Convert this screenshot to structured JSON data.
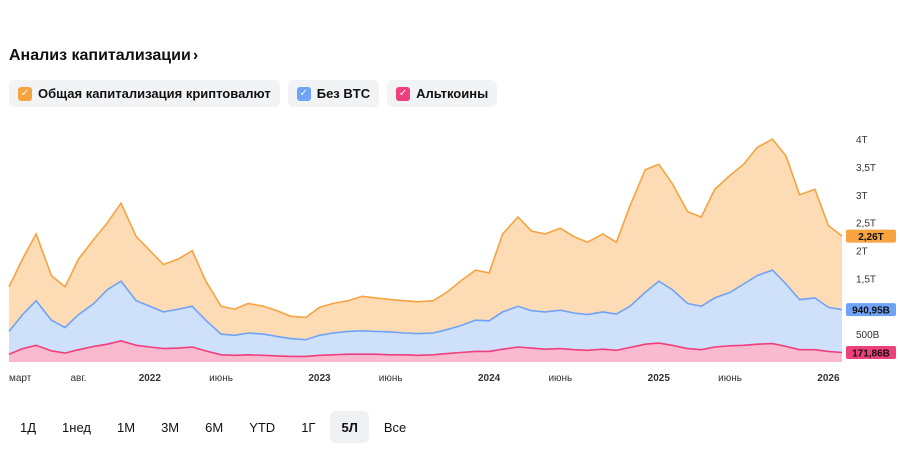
{
  "header": {
    "title": "Анализ капитализации",
    "chevron": "›"
  },
  "legend": [
    {
      "label": "Общая капитализация криптовалют",
      "color": "#f6a340",
      "icon": "check-icon"
    },
    {
      "label": "Без BTC",
      "color": "#6fa3f7",
      "icon": "check-icon"
    },
    {
      "label": "Альткоины",
      "color": "#ef3f7c",
      "icon": "check-icon"
    }
  ],
  "periods": [
    "1Д",
    "1нед",
    "1М",
    "3М",
    "6М",
    "YTD",
    "1Г",
    "5Л",
    "Все"
  ],
  "active_period": "5Л",
  "chart_data": {
    "type": "area",
    "title": "Анализ капитализации",
    "xlabel": "",
    "ylabel": "",
    "ylim": [
      0,
      4.2
    ],
    "yticks": [
      {
        "label": "500B",
        "value": 0.5
      },
      {
        "label": "1,5T",
        "value": 1.5
      },
      {
        "label": "2T",
        "value": 2.0
      },
      {
        "label": "2,5T",
        "value": 2.5
      },
      {
        "label": "3T",
        "value": 3.0
      },
      {
        "label": "3,5T",
        "value": 3.5
      },
      {
        "label": "4T",
        "value": 4.0
      }
    ],
    "xticks": [
      {
        "label": "март",
        "x": 2021.17
      },
      {
        "label": "авг.",
        "x": 2021.58
      },
      {
        "label": "2022",
        "x": 2022.0
      },
      {
        "label": "июнь",
        "x": 2022.42
      },
      {
        "label": "2023",
        "x": 2023.0
      },
      {
        "label": "июнь",
        "x": 2023.42
      },
      {
        "label": "2024",
        "x": 2024.0
      },
      {
        "label": "июнь",
        "x": 2024.42
      },
      {
        "label": "2025",
        "x": 2025.0
      },
      {
        "label": "июнь",
        "x": 2025.42
      },
      {
        "label": "2026",
        "x": 2026.0
      }
    ],
    "xlim": [
      2021.17,
      2026.08
    ],
    "x": [
      2021.17,
      2021.25,
      2021.33,
      2021.42,
      2021.5,
      2021.58,
      2021.67,
      2021.75,
      2021.83,
      2021.92,
      2022.0,
      2022.08,
      2022.17,
      2022.25,
      2022.33,
      2022.42,
      2022.5,
      2022.58,
      2022.67,
      2022.75,
      2022.83,
      2022.92,
      2023.0,
      2023.08,
      2023.17,
      2023.25,
      2023.33,
      2023.42,
      2023.5,
      2023.58,
      2023.67,
      2023.75,
      2023.83,
      2023.92,
      2024.0,
      2024.08,
      2024.17,
      2024.25,
      2024.33,
      2024.42,
      2024.5,
      2024.58,
      2024.67,
      2024.75,
      2024.83,
      2024.92,
      2025.0,
      2025.08,
      2025.17,
      2025.25,
      2025.33,
      2025.42,
      2025.5,
      2025.58,
      2025.67,
      2025.75,
      2025.83,
      2025.92,
      2026.0,
      2026.08
    ],
    "series": [
      {
        "name": "Общая капитализация криптовалют",
        "color": "#f6a340",
        "last_label": "2,26T",
        "values": [
          1.35,
          1.85,
          2.3,
          1.55,
          1.35,
          1.85,
          2.2,
          2.5,
          2.85,
          2.25,
          2.0,
          1.75,
          1.85,
          2.0,
          1.45,
          1.0,
          0.95,
          1.05,
          1.0,
          0.92,
          0.82,
          0.8,
          0.98,
          1.05,
          1.1,
          1.18,
          1.15,
          1.12,
          1.1,
          1.08,
          1.1,
          1.25,
          1.45,
          1.65,
          1.6,
          2.3,
          2.6,
          2.35,
          2.3,
          2.4,
          2.25,
          2.15,
          2.3,
          2.15,
          2.8,
          3.45,
          3.55,
          3.2,
          2.7,
          2.6,
          3.1,
          3.35,
          3.55,
          3.85,
          4.0,
          3.7,
          3.0,
          3.1,
          2.45,
          2.26
        ]
      },
      {
        "name": "Без BTC",
        "color": "#6fa3f7",
        "last_label": "940,95B",
        "values": [
          0.55,
          0.85,
          1.1,
          0.75,
          0.62,
          0.85,
          1.05,
          1.3,
          1.45,
          1.1,
          1.0,
          0.9,
          0.95,
          1.0,
          0.75,
          0.5,
          0.48,
          0.52,
          0.5,
          0.46,
          0.42,
          0.4,
          0.48,
          0.52,
          0.55,
          0.56,
          0.55,
          0.54,
          0.52,
          0.51,
          0.52,
          0.58,
          0.65,
          0.75,
          0.74,
          0.9,
          1.0,
          0.92,
          0.9,
          0.93,
          0.88,
          0.85,
          0.9,
          0.86,
          1.0,
          1.25,
          1.45,
          1.3,
          1.05,
          1.0,
          1.15,
          1.25,
          1.4,
          1.55,
          1.65,
          1.4,
          1.12,
          1.15,
          0.98,
          0.94
        ]
      },
      {
        "name": "Альткоины",
        "color": "#ef3f7c",
        "last_label": "171,86B",
        "values": [
          0.14,
          0.24,
          0.3,
          0.2,
          0.16,
          0.22,
          0.28,
          0.32,
          0.38,
          0.3,
          0.27,
          0.24,
          0.25,
          0.27,
          0.2,
          0.13,
          0.12,
          0.13,
          0.12,
          0.11,
          0.1,
          0.1,
          0.12,
          0.13,
          0.14,
          0.14,
          0.14,
          0.13,
          0.13,
          0.12,
          0.13,
          0.15,
          0.17,
          0.19,
          0.19,
          0.23,
          0.27,
          0.25,
          0.23,
          0.24,
          0.22,
          0.21,
          0.23,
          0.21,
          0.26,
          0.32,
          0.34,
          0.3,
          0.24,
          0.22,
          0.27,
          0.29,
          0.3,
          0.32,
          0.33,
          0.28,
          0.22,
          0.22,
          0.19,
          0.17
        ]
      }
    ]
  }
}
